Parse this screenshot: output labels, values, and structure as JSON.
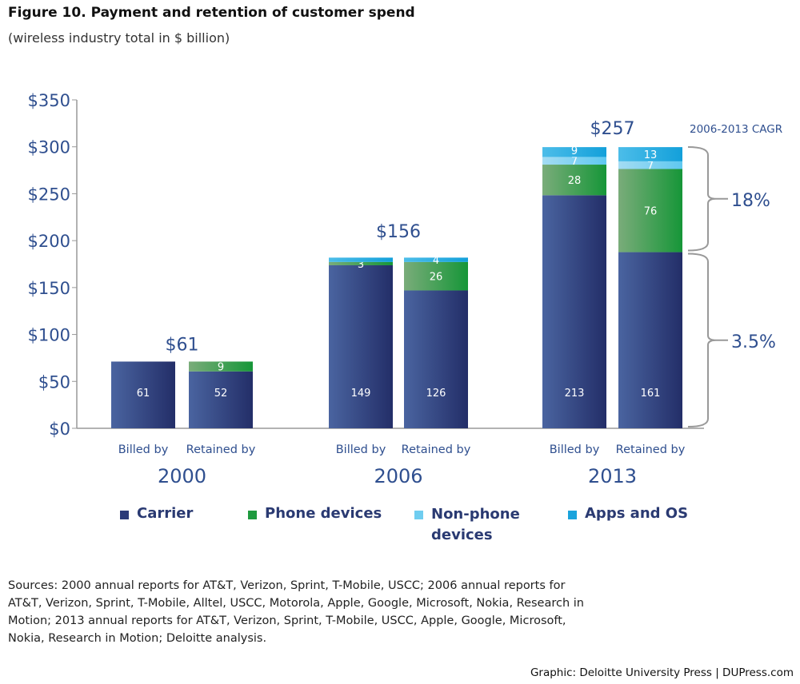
{
  "title": "Figure 10. Payment and retention of customer spend",
  "subtitle": "(wireless industry total in $ billion)",
  "chart_data": {
    "type": "bar",
    "stacked": true,
    "title": "Figure 10. Payment and retention of customer spend",
    "ylabel": "",
    "ylim": [
      0,
      350
    ],
    "yticks": [
      "$0",
      "$50",
      "$100",
      "$150",
      "$200",
      "$250",
      "$300",
      "$350"
    ],
    "ytick_values": [
      0,
      50,
      100,
      150,
      200,
      250,
      300,
      350
    ],
    "groups": [
      {
        "year": "2000",
        "total_label": "$61",
        "bars": [
          {
            "label": "Billed by",
            "values": {
              "carrier": 61,
              "phone": 0,
              "nonphone": 0,
              "apps": 0
            }
          },
          {
            "label": "Retained by",
            "values": {
              "carrier": 52,
              "phone": 9,
              "nonphone": 0,
              "apps": 0
            }
          }
        ]
      },
      {
        "year": "2006",
        "total_label": "$156",
        "bars": [
          {
            "label": "Billed by",
            "values": {
              "carrier": 149,
              "phone": 3,
              "nonphone": 0,
              "apps": 4
            }
          },
          {
            "label": "Retained by",
            "values": {
              "carrier": 126,
              "phone": 26,
              "nonphone": 0,
              "apps": 4
            }
          }
        ]
      },
      {
        "year": "2013",
        "total_label": "$257",
        "bars": [
          {
            "label": "Billed by",
            "values": {
              "carrier": 213,
              "phone": 28,
              "nonphone": 7,
              "apps": 9
            }
          },
          {
            "label": "Retained by",
            "values": {
              "carrier": 161,
              "phone": 76,
              "nonphone": 7,
              "apps": 13
            }
          }
        ]
      }
    ],
    "series": [
      {
        "key": "carrier",
        "name": "Carrier",
        "color": "#2b3a78"
      },
      {
        "key": "phone",
        "name": "Phone devices",
        "color": "#1f9a3f"
      },
      {
        "key": "nonphone",
        "name": "Non-phone devices",
        "color": "#6fcdf0"
      },
      {
        "key": "apps",
        "name": "Apps and OS",
        "color": "#1aa3dc"
      }
    ],
    "annotations": {
      "cagr_title": "2006-2013 CAGR",
      "cagr_devices": "18%",
      "cagr_carrier": "3.5%"
    },
    "legend_position": "bottom",
    "grid": false
  },
  "sources": "Sources: 2000 annual reports for AT&T, Verizon, Sprint, T-Mobile, USCC; 2006 annual reports for AT&T, Verizon, Sprint, T-Mobile, Alltel, USCC, Motorola, Apple, Google, Microsoft, Nokia, Research in Motion; 2013 annual reports for AT&T, Verizon, Sprint, T-Mobile, USCC, Apple, Google, Microsoft, Nokia, Research in Motion; Deloitte analysis.",
  "credit": "Graphic: Deloitte University Press  |  DUPress.com"
}
